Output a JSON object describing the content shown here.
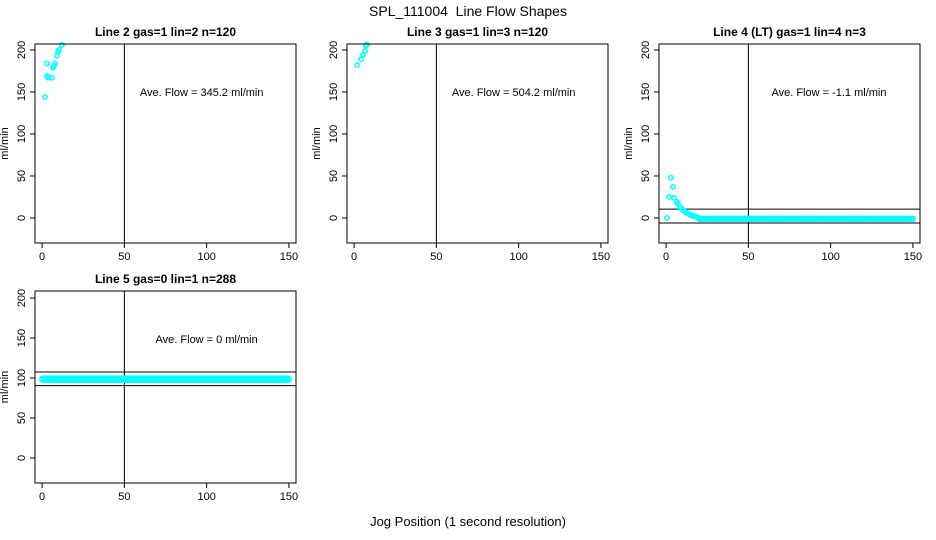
{
  "page": {
    "main_title": "SPL_111004  Line Flow Shapes",
    "x_axis_label": "Jog Position (1 second resolution)",
    "background_color": "#ffffff",
    "point_color": "#00ffff",
    "axis_color": "#000000"
  },
  "chart_data": [
    {
      "type": "scatter",
      "title": "Line 2 gas=1 lin=2 n=120",
      "annotation": "Ave. Flow =  345.2  ml/min",
      "annotation_pos": {
        "x": 97,
        "y": 150
      },
      "ylabel": "ml/min",
      "xlabel": "",
      "x_ticks": [
        0,
        50,
        100,
        150
      ],
      "y_ticks": [
        0,
        50,
        100,
        150,
        200
      ],
      "xlim": [
        -4.3,
        154.3
      ],
      "ylim": [
        -29.8,
        207.1
      ],
      "vline_x": 50,
      "hlines": [],
      "points": [
        [
          1.8,
          144
        ],
        [
          3,
          169
        ],
        [
          3.6,
          167
        ],
        [
          6,
          167
        ],
        [
          6.6,
          179
        ],
        [
          3,
          184
        ],
        [
          7.3,
          181
        ],
        [
          7.9,
          184
        ],
        [
          9.1,
          193
        ],
        [
          9.7,
          198
        ],
        [
          10.3,
          200
        ],
        [
          12,
          206
        ]
      ],
      "bands": []
    },
    {
      "type": "scatter",
      "title": "Line 3 gas=1 lin=3 n=120",
      "annotation": "Ave. Flow =  504.2  ml/min",
      "annotation_pos": {
        "x": 97,
        "y": 150
      },
      "ylabel": "ml/min",
      "xlabel": "",
      "x_ticks": [
        0,
        50,
        100,
        150
      ],
      "y_ticks": [
        0,
        50,
        100,
        150,
        200
      ],
      "xlim": [
        -4.3,
        154.3
      ],
      "ylim": [
        -29.8,
        207.1
      ],
      "vline_x": 50,
      "hlines": [],
      "points": [
        [
          1.8,
          182
        ],
        [
          4.2,
          189
        ],
        [
          5.4,
          194
        ],
        [
          6.6,
          199
        ],
        [
          7.2,
          205
        ],
        [
          7.8,
          206.5
        ]
      ],
      "bands": []
    },
    {
      "type": "scatter",
      "title": "Line 4 (LT) gas=1 lin=4 n=3",
      "annotation": "Ave. Flow =  -1.1  ml/min",
      "annotation_pos": {
        "x": 99,
        "y": 150
      },
      "ylabel": "ml/min",
      "xlabel": "",
      "x_ticks": [
        0,
        50,
        100,
        150
      ],
      "y_ticks": [
        0,
        50,
        100,
        150,
        200
      ],
      "xlim": [
        -4.3,
        154.3
      ],
      "ylim": [
        -29.8,
        207.1
      ],
      "vline_x": 50,
      "hlines": [
        10.5,
        -6
      ],
      "points": [
        [
          0.5,
          0
        ],
        [
          3,
          48
        ],
        [
          4.2,
          37
        ],
        [
          1.8,
          25
        ],
        [
          4.8,
          24
        ],
        [
          6.5,
          19
        ],
        [
          7.2,
          17
        ],
        [
          8.5,
          13
        ],
        [
          9.5,
          11
        ],
        [
          10.5,
          9
        ],
        [
          11.5,
          7.5
        ],
        [
          12.5,
          6
        ],
        [
          13.5,
          5
        ],
        [
          14.5,
          4
        ],
        [
          15.5,
          3.2
        ],
        [
          16.5,
          2.5
        ],
        [
          17.5,
          2
        ],
        [
          18.5,
          1.2
        ],
        [
          19.5,
          0.8
        ]
      ],
      "bands": [
        {
          "x1": 20,
          "x2": 150,
          "y": -1,
          "r": 2.4,
          "step": 1
        }
      ]
    },
    {
      "type": "scatter",
      "title": "Line 5 gas=0 lin=1 n=288",
      "annotation": "Ave. Flow =  0  ml/min",
      "annotation_pos": {
        "x": 100,
        "y": 149
      },
      "ylabel": "ml/min",
      "xlabel": "",
      "x_ticks": [
        0,
        50,
        100,
        150
      ],
      "y_ticks": [
        0,
        50,
        100,
        150,
        200
      ],
      "xlim": [
        -4.3,
        154.3
      ],
      "ylim": [
        -31.3,
        208.8
      ],
      "vline_x": 50,
      "hlines": [
        107.5,
        90.5
      ],
      "points": [],
      "bands": [
        {
          "x1": 0.5,
          "x2": 150,
          "y": 98.5,
          "r": 3.1,
          "step": 1
        }
      ]
    }
  ]
}
